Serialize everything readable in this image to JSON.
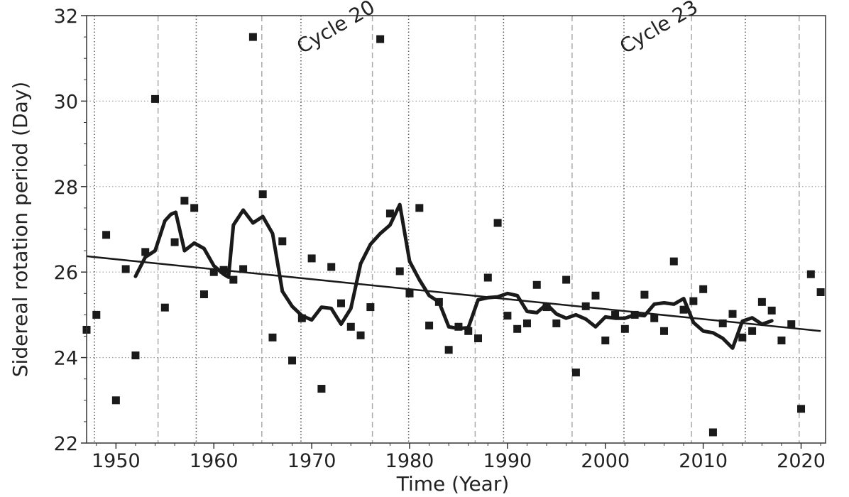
{
  "chart_data": {
    "type": "scatter",
    "xlabel": "Time (Year)",
    "ylabel": "Sidereal rotation period (Day)",
    "xlim": [
      1947,
      2022.5
    ],
    "ylim": [
      22,
      32
    ],
    "xticks": [
      1950,
      1960,
      1970,
      1980,
      1990,
      2000,
      2010,
      2020
    ],
    "yticks": [
      22,
      24,
      26,
      28,
      30,
      32
    ],
    "grid": true,
    "cycle_minima_dashed": [
      1954.3,
      1964.9,
      1976.2,
      1986.7,
      1996.6,
      2008.8,
      2019.8
    ],
    "cycle_maxima_dotted": [
      1947.8,
      1958.2,
      1968.9,
      1979.9,
      1989.6,
      2001.9,
      2014.3
    ],
    "annotations": [
      {
        "text": "Cycle 20",
        "x": 1969,
        "y": 31.1
      },
      {
        "text": "Cycle 23",
        "x": 2002,
        "y": 31.1
      }
    ],
    "series": [
      {
        "kind": "points",
        "x": [
          1947,
          1948,
          1949,
          1950,
          1951,
          1952,
          1953,
          1954,
          1955,
          1956,
          1957,
          1958,
          1959,
          1960,
          1961,
          1962,
          1963,
          1964,
          1965,
          1966,
          1967,
          1968,
          1969,
          1970,
          1971,
          1972,
          1973,
          1974,
          1975,
          1976,
          1977,
          1978,
          1979,
          1980,
          1981,
          1982,
          1983,
          1984,
          1985,
          1986,
          1987,
          1988,
          1989,
          1990,
          1991,
          1992,
          1993,
          1994,
          1995,
          1996,
          1997,
          1998,
          1999,
          2000,
          2001,
          2002,
          2003,
          2004,
          2005,
          2006,
          2007,
          2008,
          2009,
          2010,
          2011,
          2012,
          2013,
          2014,
          2015,
          2016,
          2017,
          2018,
          2019,
          2020,
          2021,
          2022
        ],
        "y": [
          24.65,
          25.0,
          26.87,
          23.0,
          26.07,
          24.05,
          26.47,
          30.05,
          25.17,
          26.7,
          27.67,
          27.5,
          25.48,
          26.0,
          26.05,
          25.82,
          26.07,
          31.5,
          27.82,
          24.47,
          26.72,
          23.93,
          24.92,
          26.32,
          23.27,
          26.12,
          25.27,
          24.72,
          24.52,
          25.18,
          31.45,
          27.37,
          26.02,
          25.5,
          27.5,
          24.75,
          25.3,
          24.18,
          24.72,
          24.62,
          24.45,
          25.87,
          27.15,
          24.98,
          24.67,
          24.8,
          25.7,
          25.18,
          24.8,
          25.82,
          23.65,
          25.2,
          25.45,
          24.4,
          25.0,
          24.67,
          25.0,
          25.47,
          24.92,
          24.62,
          26.25,
          25.12,
          25.32,
          25.6,
          22.25,
          24.8,
          25.02,
          24.47,
          24.62,
          25.3,
          25.1,
          24.4,
          24.78,
          22.8,
          25.95,
          25.53
        ]
      },
      {
        "kind": "smoothed",
        "x": [
          1952,
          1953,
          1954,
          1955,
          1955.6,
          1956.1,
          1957,
          1958,
          1959,
          1960,
          1961,
          1961.5,
          1962,
          1963,
          1964,
          1965,
          1966,
          1967,
          1968,
          1969,
          1970,
          1971,
          1972,
          1973,
          1974,
          1975,
          1976,
          1977,
          1978,
          1979,
          1980,
          1981,
          1982,
          1983,
          1984,
          1985,
          1986,
          1987,
          1988,
          1989,
          1990,
          1991,
          1992,
          1993,
          1994,
          1995,
          1996,
          1997,
          1998,
          1999,
          2000,
          2001,
          2002,
          2003,
          2004,
          2005,
          2006,
          2007,
          2008,
          2009,
          2010,
          2011,
          2012,
          2013,
          2014,
          2015,
          2016,
          2017
        ],
        "y": [
          25.9,
          26.35,
          26.5,
          27.2,
          27.35,
          27.4,
          26.5,
          26.68,
          26.55,
          26.15,
          25.95,
          25.88,
          27.1,
          27.45,
          27.15,
          27.3,
          26.9,
          25.55,
          25.2,
          24.98,
          24.88,
          25.18,
          25.15,
          24.78,
          25.15,
          26.2,
          26.65,
          26.9,
          27.1,
          27.58,
          26.25,
          25.82,
          25.45,
          25.3,
          24.72,
          24.68,
          24.7,
          25.35,
          25.4,
          25.42,
          25.5,
          25.45,
          25.08,
          25.05,
          25.25,
          25.02,
          24.92,
          25.0,
          24.9,
          24.72,
          24.95,
          24.92,
          24.92,
          25.0,
          24.98,
          25.25,
          25.28,
          25.25,
          25.38,
          24.82,
          24.62,
          24.58,
          24.45,
          24.22,
          24.85,
          24.93,
          24.78,
          24.86
        ]
      },
      {
        "kind": "linear-fit",
        "x": [
          1947,
          2022
        ],
        "y": [
          26.37,
          24.62
        ]
      }
    ]
  }
}
